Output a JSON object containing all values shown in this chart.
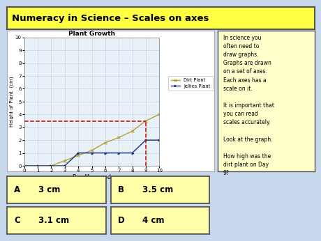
{
  "title": "Numeracy in Science – Scales on axes",
  "graph_title": "Plant Growth",
  "xlabel": "Day Measured",
  "ylabel": "Height of Plant  (cm)",
  "xlim": [
    0,
    10
  ],
  "ylim": [
    0,
    10
  ],
  "xticks": [
    0,
    1,
    2,
    3,
    4,
    5,
    6,
    7,
    8,
    9,
    10
  ],
  "yticks": [
    0,
    1,
    2,
    3,
    4,
    5,
    6,
    7,
    8,
    9,
    10
  ],
  "dirt_plant_x": [
    0,
    2,
    3,
    4,
    5,
    6,
    7,
    8,
    9,
    10
  ],
  "dirt_plant_y": [
    0,
    0,
    0.4,
    0.8,
    1.2,
    1.8,
    2.2,
    2.7,
    3.5,
    4.0
  ],
  "jellies_plant_x": [
    0,
    1,
    2,
    3,
    4,
    5,
    6,
    7,
    8,
    9,
    10
  ],
  "jellies_plant_y": [
    0,
    0,
    0,
    0,
    1,
    1,
    1,
    1,
    1,
    2,
    2
  ],
  "dirt_color": "#b5a030",
  "jellies_color": "#1a2f7a",
  "dashed_h_y": 3.5,
  "dashed_v_x": 9,
  "dashed_color": "#cc0000",
  "bg_main": "#c8d8ec",
  "bg_panel": "#dce8f5",
  "bg_graph_outer": "#ffffff",
  "bg_graph": "#e8f0f8",
  "grid_color": "#b8cce0",
  "bg_yellow": "#ffffcc",
  "text_block": "In science you\noften need to\ndraw graphs.\nGraphs are drawn\non a set of axes.\nEach axes has a\nscale on it.\n\nIt is important that\nyou can read\nscales accurately.\n\nLook at the graph.\n\nHow high was the\ndirt plant on Day\n9?",
  "answers": [
    {
      "letter": "A",
      "text": "3 cm"
    },
    {
      "letter": "B",
      "text": "3.5 cm"
    },
    {
      "letter": "C",
      "text": "3.1 cm"
    },
    {
      "letter": "D",
      "text": "4 cm"
    }
  ],
  "title_bg": "#ffff44",
  "title_border": "#555555",
  "answer_bg": "#ffffaa",
  "answer_border": "#555555"
}
